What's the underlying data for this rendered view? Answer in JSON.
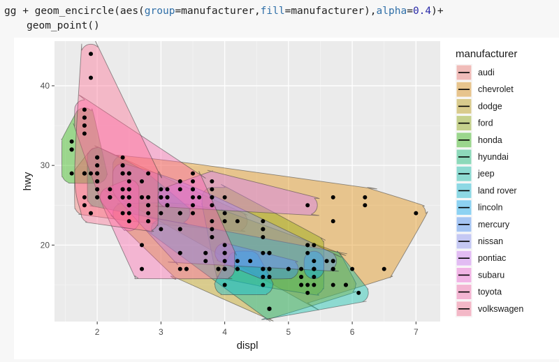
{
  "code": {
    "line1_parts": [
      "gg + geom_encircle(aes(",
      "group",
      "=manufacturer,",
      "fill",
      "=manufacturer),",
      "alpha",
      "=",
      "0.4",
      ")+"
    ],
    "line2": "geom_point()"
  },
  "chart_data": {
    "type": "scatter",
    "xlabel": "displ",
    "ylabel": "hwy",
    "xlim": [
      1.33,
      7.38
    ],
    "ylim": [
      10.4,
      45.6
    ],
    "xticks": [
      2,
      3,
      4,
      5,
      6,
      7
    ],
    "yticks": [
      20,
      30,
      40
    ],
    "grid": true,
    "legend_title": "manufacturer",
    "legend_position": "right",
    "series": [
      {
        "name": "audi",
        "color": "#F8766D",
        "points": [
          [
            1.8,
            29
          ],
          [
            1.8,
            29
          ],
          [
            2,
            31
          ],
          [
            2,
            30
          ],
          [
            2.8,
            26
          ],
          [
            2.8,
            26
          ],
          [
            3.1,
            27
          ],
          [
            1.8,
            26
          ],
          [
            1.8,
            25
          ],
          [
            2,
            28
          ],
          [
            2,
            27
          ],
          [
            2.8,
            25
          ],
          [
            2.8,
            25
          ],
          [
            3.1,
            25
          ],
          [
            3.1,
            25
          ],
          [
            2.8,
            24
          ],
          [
            3.1,
            25
          ],
          [
            4.2,
            23
          ]
        ]
      },
      {
        "name": "chevrolet",
        "color": "#E18A00",
        "points": [
          [
            5.3,
            20
          ],
          [
            5.3,
            15
          ],
          [
            5.3,
            20
          ],
          [
            5.7,
            17
          ],
          [
            6,
            17
          ],
          [
            5.7,
            26
          ],
          [
            5.7,
            23
          ],
          [
            6.2,
            26
          ],
          [
            6.2,
            25
          ],
          [
            7,
            24
          ],
          [
            5.3,
            19
          ],
          [
            5.3,
            14
          ],
          [
            5.7,
            15
          ],
          [
            6.5,
            17
          ],
          [
            2.4,
            27
          ],
          [
            2.4,
            30
          ],
          [
            3.1,
            26
          ],
          [
            3.5,
            29
          ],
          [
            3.6,
            26
          ]
        ]
      },
      {
        "name": "dodge",
        "color": "#BE9C00",
        "points": [
          [
            2.4,
            24
          ],
          [
            3,
            24
          ],
          [
            3.3,
            22
          ],
          [
            3.3,
            22
          ],
          [
            3.3,
            24
          ],
          [
            3.3,
            24
          ],
          [
            3.3,
            17
          ],
          [
            3.8,
            22
          ],
          [
            3.8,
            21
          ],
          [
            3.8,
            23
          ],
          [
            4,
            23
          ],
          [
            3.7,
            19
          ],
          [
            3.7,
            18
          ],
          [
            3.9,
            17
          ],
          [
            3.9,
            17
          ],
          [
            4.7,
            19
          ],
          [
            4.7,
            19
          ],
          [
            4.7,
            12
          ],
          [
            5.2,
            17
          ],
          [
            5.2,
            15
          ],
          [
            3.9,
            17
          ],
          [
            4.7,
            17
          ],
          [
            4.7,
            12
          ],
          [
            4.7,
            17
          ],
          [
            5.2,
            16
          ],
          [
            5.7,
            18
          ],
          [
            5.9,
            15
          ],
          [
            4.7,
            16
          ],
          [
            4.7,
            12
          ],
          [
            4.7,
            17
          ],
          [
            4.7,
            17
          ],
          [
            4.7,
            16
          ],
          [
            4.7,
            12
          ],
          [
            5.2,
            15
          ],
          [
            5.2,
            16
          ],
          [
            5.7,
            17
          ],
          [
            5.9,
            15
          ]
        ]
      },
      {
        "name": "ford",
        "color": "#8CAB00",
        "points": [
          [
            4,
            17
          ],
          [
            4,
            17
          ],
          [
            4,
            18
          ],
          [
            4,
            17
          ],
          [
            4.6,
            17
          ],
          [
            5,
            17
          ],
          [
            5.4,
            17
          ],
          [
            5.4,
            17
          ],
          [
            4.6,
            19
          ],
          [
            5.4,
            16
          ],
          [
            5.4,
            17
          ],
          [
            3.8,
            26
          ],
          [
            3.8,
            25
          ],
          [
            4,
            26
          ],
          [
            4,
            24
          ],
          [
            4.6,
            21
          ],
          [
            4.6,
            22
          ],
          [
            4.6,
            23
          ],
          [
            4.6,
            22
          ],
          [
            5.4,
            20
          ],
          [
            4.2,
            17
          ],
          [
            4.2,
            17
          ],
          [
            4.6,
            16
          ],
          [
            4.6,
            17
          ],
          [
            5.4,
            15
          ],
          [
            5.4,
            17
          ]
        ]
      },
      {
        "name": "honda",
        "color": "#24B700",
        "points": [
          [
            1.6,
            33
          ],
          [
            1.6,
            32
          ],
          [
            1.6,
            32
          ],
          [
            1.6,
            29
          ],
          [
            1.6,
            32
          ],
          [
            1.8,
            34
          ],
          [
            1.8,
            36
          ],
          [
            1.8,
            36
          ],
          [
            2,
            29
          ]
        ]
      },
      {
        "name": "hyundai",
        "color": "#00BE70",
        "points": [
          [
            2,
            26
          ],
          [
            2,
            27
          ],
          [
            2,
            30
          ],
          [
            2,
            31
          ],
          [
            2.7,
            26
          ],
          [
            2.7,
            26
          ],
          [
            2.7,
            28
          ],
          [
            2.4,
            26
          ],
          [
            2.4,
            29
          ],
          [
            2.5,
            28
          ],
          [
            2.5,
            29
          ],
          [
            3.3,
            24
          ],
          [
            3.3,
            24
          ],
          [
            2.4,
            26
          ]
        ]
      },
      {
        "name": "jeep",
        "color": "#00C1AB",
        "points": [
          [
            3,
            22
          ],
          [
            3.7,
            19
          ],
          [
            4,
            20
          ],
          [
            4.7,
            17
          ],
          [
            4.7,
            12
          ],
          [
            4.7,
            19
          ],
          [
            5.7,
            18
          ],
          [
            6.1,
            14
          ]
        ]
      },
      {
        "name": "land rover",
        "color": "#00BBDA",
        "points": [
          [
            4,
            15
          ],
          [
            4.2,
            18
          ],
          [
            4.4,
            18
          ],
          [
            4.6,
            15
          ]
        ]
      },
      {
        "name": "lincoln",
        "color": "#00ACFC",
        "points": [
          [
            5.4,
            17
          ],
          [
            5.4,
            17
          ],
          [
            5.4,
            18
          ]
        ]
      },
      {
        "name": "mercury",
        "color": "#3C8CFF",
        "points": [
          [
            4,
            19
          ],
          [
            4,
            19
          ],
          [
            4.6,
            17
          ],
          [
            5,
            17
          ]
        ]
      },
      {
        "name": "nissan",
        "color": "#8B93FF",
        "points": [
          [
            2.4,
            27
          ],
          [
            2.4,
            29
          ],
          [
            2.5,
            27
          ],
          [
            2.5,
            26
          ],
          [
            3.5,
            25
          ],
          [
            3.5,
            24
          ],
          [
            3,
            26
          ],
          [
            3,
            26
          ],
          [
            3.5,
            26
          ],
          [
            3.3,
            19
          ],
          [
            3.3,
            19
          ],
          [
            3.8,
            21
          ],
          [
            5.6,
            18
          ]
        ]
      },
      {
        "name": "pontiac",
        "color": "#D575FE",
        "points": [
          [
            3.1,
            26
          ],
          [
            3.8,
            26
          ],
          [
            3.8,
            27
          ],
          [
            3.8,
            28
          ],
          [
            5.3,
            25
          ]
        ]
      },
      {
        "name": "subaru",
        "color": "#F962DD",
        "points": [
          [
            2.5,
            25
          ],
          [
            2.5,
            24
          ],
          [
            2.5,
            27
          ],
          [
            2.5,
            25
          ],
          [
            2.5,
            26
          ],
          [
            2.5,
            23
          ],
          [
            2.2,
            26
          ],
          [
            2.2,
            26
          ],
          [
            2.5,
            26
          ],
          [
            2.5,
            26
          ],
          [
            2.5,
            25
          ],
          [
            2.5,
            27
          ],
          [
            2.5,
            25
          ],
          [
            2.5,
            27
          ]
        ]
      },
      {
        "name": "toyota",
        "color": "#FF65AC",
        "points": [
          [
            2.7,
            20
          ],
          [
            2.7,
            17
          ],
          [
            3.4,
            17
          ],
          [
            3.4,
            17
          ],
          [
            4,
            17
          ],
          [
            4,
            19
          ],
          [
            2,
            31
          ],
          [
            2.2,
            27
          ],
          [
            2.2,
            26
          ],
          [
            2.4,
            29
          ],
          [
            2.4,
            31
          ],
          [
            3,
            26
          ],
          [
            3,
            26
          ],
          [
            3.3,
            27
          ],
          [
            3.3,
            28
          ],
          [
            1.8,
            35
          ],
          [
            1.8,
            37
          ],
          [
            1.8,
            35
          ],
          [
            2.4,
            30
          ],
          [
            3,
            27
          ],
          [
            3.5,
            28
          ],
          [
            3.5,
            27
          ],
          [
            3.5,
            27
          ]
        ]
      },
      {
        "name": "volkswagen",
        "color": "#FF6C91",
        "points": [
          [
            1.9,
            44
          ],
          [
            1.9,
            41
          ],
          [
            2,
            29
          ],
          [
            2,
            26
          ],
          [
            2.8,
            23
          ],
          [
            1.9,
            29
          ],
          [
            2,
            29
          ],
          [
            2,
            28
          ],
          [
            2.5,
            29
          ],
          [
            1.8,
            29
          ],
          [
            1.8,
            29
          ],
          [
            2,
            28
          ],
          [
            2.8,
            29
          ],
          [
            2.8,
            23
          ],
          [
            1.9,
            24
          ],
          [
            2,
            29
          ],
          [
            2,
            28
          ],
          [
            2.5,
            29
          ]
        ]
      }
    ]
  }
}
